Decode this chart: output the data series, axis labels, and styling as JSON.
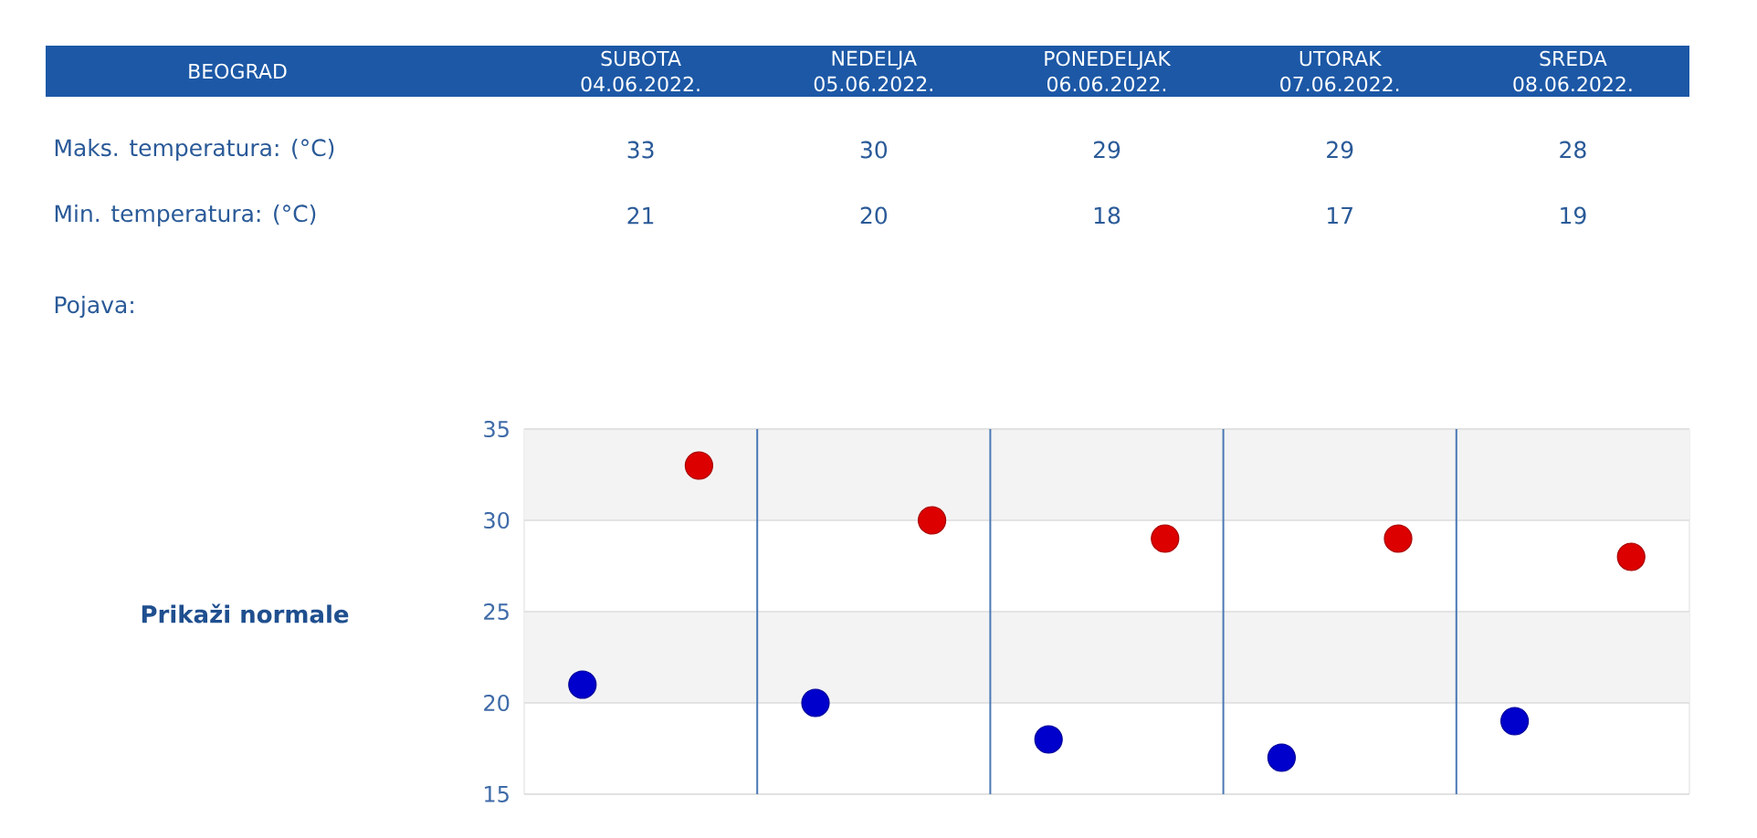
{
  "chart_data": {
    "type": "scatter",
    "title": "BEOGRAD",
    "categories": [
      null,
      null,
      null,
      null,
      null
    ],
    "series": [
      {
        "color": "#dd0000",
        "values": [
          33,
          30,
          29,
          29,
          28
        ]
      },
      {
        "color": "#0000cc",
        "values": [
          21,
          20,
          18,
          17,
          19
        ]
      }
    ],
    "ylim": [
      15,
      35
    ],
    "yticks": [
      15,
      20,
      25,
      30,
      35
    ],
    "grid": true,
    "marker": "circle",
    "data_labels": true,
    "bands": [
      {
        "axis": "y",
        "from": 30,
        "to": 35,
        "color": "#f3f3f3"
      },
      {
        "axis": "y",
        "from": 20,
        "to": 25,
        "color": "#f3f3f3"
      }
    ],
    "annotations": [
      "SUBOTA 04.06.2022.",
      "NEDELJA 05.06.2022.",
      "PONEDELJAK 06.06.2022.",
      "UTORAK 07.06.2022.",
      "SREDA 08.06.2022.",
      "Maks. temperatura: (°C)",
      "Min. temperatura: (°C)",
      "Pojava:",
      "Prikaži normale"
    ]
  }
}
